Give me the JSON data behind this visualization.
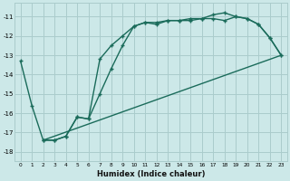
{
  "xlabel": "Humidex (Indice chaleur)",
  "bg_color": "#cce8e8",
  "grid_color": "#aacccc",
  "line_color": "#1a6b5a",
  "line1_x": [
    0,
    1,
    2,
    3,
    4,
    5,
    6,
    7,
    8,
    9,
    10,
    11,
    12,
    13,
    14,
    15,
    16,
    17,
    18,
    19,
    20,
    21,
    22,
    23
  ],
  "line1_y": [
    -13.3,
    -15.6,
    -17.4,
    -17.4,
    -17.2,
    -16.2,
    -16.3,
    -13.2,
    -12.5,
    -12.0,
    -11.5,
    -11.3,
    -11.4,
    -11.2,
    -11.2,
    -11.2,
    -11.1,
    -11.1,
    -11.2,
    -11.0,
    -11.1,
    -11.4,
    -12.1,
    -13.0
  ],
  "line2_x": [
    2,
    3,
    4,
    5,
    6,
    7,
    8,
    9,
    10,
    11,
    12,
    13,
    14,
    15,
    16,
    17,
    18,
    19,
    20,
    21,
    22,
    23
  ],
  "line2_y": [
    -17.4,
    -17.4,
    -17.2,
    -16.2,
    -16.3,
    -15.0,
    -13.7,
    -12.5,
    -11.5,
    -11.3,
    -11.3,
    -11.2,
    -11.2,
    -11.1,
    -11.1,
    -10.9,
    -10.8,
    -11.0,
    -11.1,
    -11.4,
    -12.1,
    -13.0
  ],
  "line3_x": [
    2,
    23
  ],
  "line3_y": [
    -17.4,
    -13.0
  ],
  "xlim": [
    -0.5,
    23.5
  ],
  "ylim": [
    -18.5,
    -10.3
  ],
  "xticks": [
    0,
    1,
    2,
    3,
    4,
    5,
    6,
    7,
    8,
    9,
    10,
    11,
    12,
    13,
    14,
    15,
    16,
    17,
    18,
    19,
    20,
    21,
    22,
    23
  ],
  "yticks": [
    -11,
    -12,
    -13,
    -14,
    -15,
    -16,
    -17,
    -18
  ],
  "marker": "+",
  "markersize": 3,
  "linewidth": 1.0
}
